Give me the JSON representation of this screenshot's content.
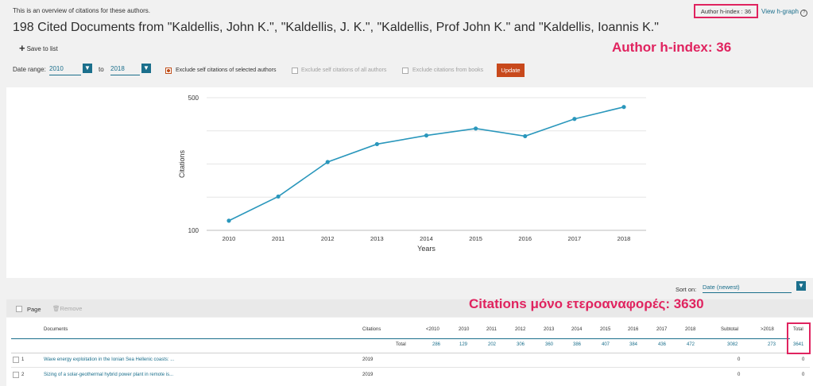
{
  "header": {
    "intro": "This is an overview of citations for these authors.",
    "title": "198 Cited Documents from  \"Kaldellis, John K.\", \"Kaldellis, J. K.\", \"Kaldellis, Prof John K.\" and \"Kaldellis, Ioannis K.\"",
    "save_label": "Save to list",
    "h_index": "Author h-index : 36",
    "view_h_graph": "View h-graph"
  },
  "annotations": {
    "h_index_callout": "Author h-index: 36",
    "citations_callout": "Citations μόνο ετεροαναφορές: 3630"
  },
  "filters": {
    "date_range_label": "Date range:",
    "from": "2010",
    "to_label": "to",
    "to": "2018",
    "exclude_selected": "Exclude self citations of selected authors",
    "exclude_all": "Exclude self citations of all authors",
    "exclude_books": "Exclude citations from books",
    "update": "Update"
  },
  "chart_data": {
    "type": "line",
    "x": [
      "2010",
      "2011",
      "2012",
      "2013",
      "2014",
      "2015",
      "2016",
      "2017",
      "2018"
    ],
    "series": [
      {
        "values": [
          129,
          202,
          306,
          360,
          386,
          407,
          384,
          436,
          472
        ]
      }
    ],
    "ylabel": "Citations",
    "xlabel": "Years",
    "y_ticks": [
      "500",
      "100"
    ],
    "ylim": [
      100,
      500
    ],
    "grid": true
  },
  "sort": {
    "label": "Sort on:",
    "value": "Date (newest)"
  },
  "page_bar": {
    "page_label": "Page",
    "remove_label": "Remove"
  },
  "table": {
    "headers": {
      "documents": "Documents",
      "citations": "Citations",
      "years": [
        "<2010",
        "2010",
        "2011",
        "2012",
        "2013",
        "2014",
        "2015",
        "2016",
        "2017",
        "2018"
      ],
      "subtotal": "Subtotal",
      "after": ">2018",
      "total": "Total"
    },
    "totals": {
      "label": "Total",
      "years": [
        "286",
        "129",
        "202",
        "306",
        "360",
        "386",
        "407",
        "384",
        "436",
        "472"
      ],
      "subtotal": "3082",
      "after": "273",
      "total": "3641"
    },
    "rows": [
      {
        "num": "1",
        "title": "Wave energy exploitation in the Ionian Sea Hellenic coasts: ...",
        "year": "2019",
        "subtotal": "0",
        "total": "0"
      },
      {
        "num": "2",
        "title": "Sizing of a solar-geothermal hybrid power plant in remote is...",
        "year": "2019",
        "subtotal": "0",
        "total": "0"
      }
    ]
  }
}
